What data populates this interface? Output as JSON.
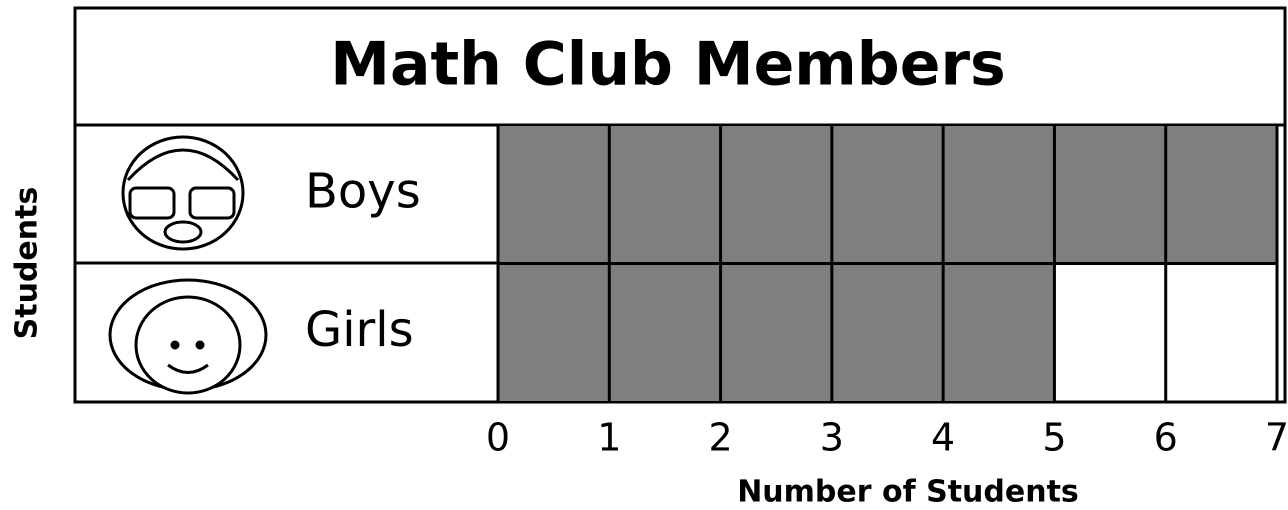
{
  "chart_data": {
    "type": "bar",
    "orientation": "horizontal",
    "title": "Math Club Members",
    "categories": [
      "Boys",
      "Girls"
    ],
    "values": [
      7,
      5
    ],
    "color": "#7f7f7f",
    "xlim": [
      0,
      7
    ],
    "xticks": [
      0,
      1,
      2,
      3,
      4,
      5,
      6,
      7
    ],
    "grid": true,
    "xlabel": "Number of Students",
    "ylabel": "Students"
  }
}
